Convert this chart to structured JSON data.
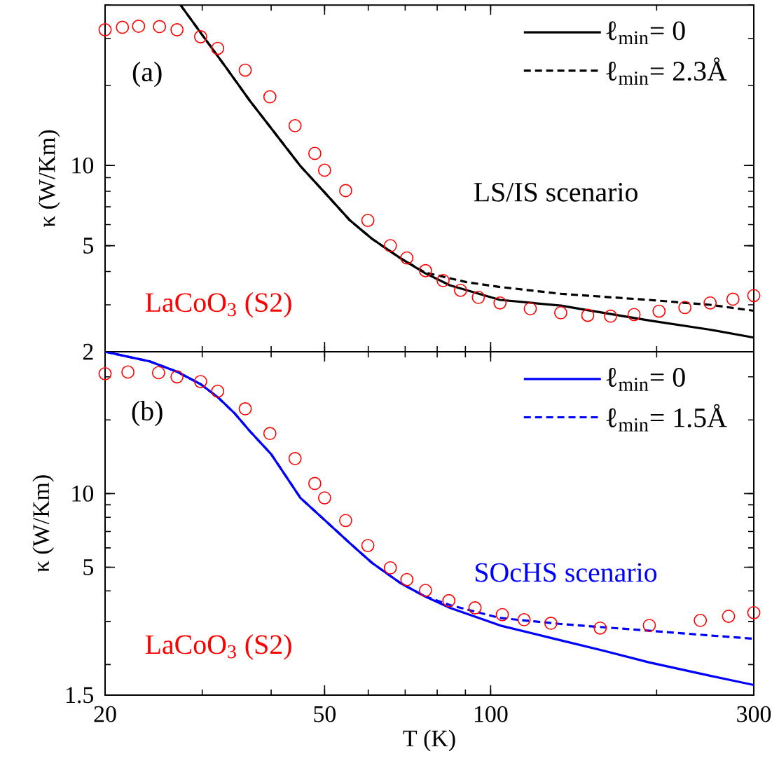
{
  "chart_data": [
    {
      "type": "line",
      "ylabel": "κ (W/Km)",
      "log": "xy",
      "xlim": [
        20,
        300
      ],
      "ylim": [
        2,
        40
      ],
      "xticks": [
        20,
        50,
        100,
        300
      ],
      "yticks": [
        2,
        5,
        10
      ],
      "tick_labels": "y",
      "legend": "top right",
      "annotations": [
        "(a)",
        "LS/IS scenario",
        "LaCoO$_{3}$ (S2)"
      ],
      "series": [
        {
          "type": "scatter",
          "color": "#ff0000",
          "marker": "circle",
          "x": [
            20,
            21.5,
            23,
            25.1,
            27,
            29.8,
            32,
            35.9,
            39.8,
            44.2,
            48,
            50,
            54.6,
            59.9,
            65.8,
            70.5,
            76.2,
            82,
            88.2,
            95,
            104,
            118,
            134,
            150,
            165,
            182,
            202,
            225,
            250,
            275,
            300
          ],
          "values": [
            32.3,
            33,
            33.3,
            33.2,
            32.3,
            30.4,
            27.5,
            22.8,
            18.1,
            14.1,
            11.1,
            9.6,
            8.05,
            6.22,
            5.0,
            4.5,
            4.03,
            3.7,
            3.4,
            3.2,
            3.05,
            2.9,
            2.8,
            2.74,
            2.72,
            2.76,
            2.84,
            2.93,
            3.05,
            3.15,
            3.25
          ]
        },
        {
          "name": "ℓ$_{min}$= 0",
          "color": "#000000",
          "line_style": "solid",
          "x": [
            27.4,
            30,
            33,
            36.6,
            40,
            45.2,
            50,
            55.6,
            61,
            68.6,
            76,
            84.4,
            104,
            134,
            160,
            194,
            250,
            300
          ],
          "values": [
            40,
            30.9,
            23.6,
            17.5,
            13.8,
            9.95,
            7.92,
            6.22,
            5.3,
            4.49,
            3.95,
            3.55,
            3.13,
            2.98,
            2.8,
            2.62,
            2.42,
            2.26
          ]
        },
        {
          "name": "ℓ$_{min}$= 2.3Å",
          "color": "#000000",
          "line_style": "dashed",
          "x": [
            27.4,
            30,
            33,
            36.6,
            40,
            45.2,
            50,
            55.6,
            61,
            68.6,
            76,
            90.4,
            104,
            134,
            198,
            250,
            300
          ],
          "values": [
            40,
            30.9,
            23.6,
            17.5,
            13.8,
            9.95,
            7.92,
            6.22,
            5.3,
            4.49,
            3.97,
            3.65,
            3.5,
            3.3,
            3.12,
            3.0,
            2.85
          ]
        }
      ]
    },
    {
      "type": "line",
      "xlabel": "T (K)",
      "ylabel": "κ (W/Km)",
      "log": "xy",
      "xlim": [
        20,
        300
      ],
      "ylim": [
        1.5,
        38
      ],
      "xticks": [
        20,
        50,
        100,
        300
      ],
      "yticks": [
        1.5,
        5,
        10
      ],
      "legend": "top right",
      "annotations": [
        "(b)",
        "SOcHS scenario",
        "LaCoO$_{3}$ (S2)"
      ],
      "series": [
        {
          "type": "scatter",
          "color": "#ff0000",
          "marker": "circle",
          "x": [
            20,
            22,
            25,
            27,
            29.8,
            32,
            35.9,
            39.8,
            44.2,
            48,
            50,
            54.6,
            59.9,
            65.8,
            70.5,
            76.2,
            84,
            93.7,
            105,
            115,
            128.6,
            158,
            194,
            240,
            270,
            300
          ],
          "values": [
            30.9,
            31.4,
            31.2,
            30,
            28.7,
            26.2,
            22.2,
            17.6,
            13.9,
            11.0,
            9.6,
            7.76,
            6.13,
            4.97,
            4.45,
            4.02,
            3.65,
            3.41,
            3.2,
            3.05,
            2.95,
            2.82,
            2.89,
            3.03,
            3.15,
            3.26
          ]
        },
        {
          "name": "ℓ$_{min}$= 0",
          "color": "#0000ff",
          "line_style": "solid",
          "x": [
            20,
            24.1,
            27,
            29.8,
            32,
            34.4,
            36.6,
            40,
            45.2,
            50,
            55.6,
            61,
            68.6,
            76,
            84.4,
            104,
            128.6,
            160,
            194,
            250,
            300
          ],
          "values": [
            38,
            34.7,
            31.5,
            28,
            24.8,
            21.2,
            18,
            14.5,
            9.6,
            7.8,
            6.26,
            5.2,
            4.31,
            3.8,
            3.41,
            2.89,
            2.57,
            2.28,
            2.04,
            1.8,
            1.65
          ]
        },
        {
          "name": "ℓ$_{min}$= 1.5Å",
          "color": "#0000ff",
          "line_style": "dashed",
          "x": [
            20,
            24.1,
            27,
            29.8,
            32,
            34.4,
            36.6,
            40,
            45.2,
            50,
            55.6,
            61,
            68.6,
            76,
            84.4,
            104,
            134,
            198,
            250,
            300
          ],
          "values": [
            38,
            34.7,
            31.5,
            28,
            24.8,
            21.2,
            18,
            14.5,
            9.6,
            7.8,
            6.26,
            5.2,
            4.31,
            3.8,
            3.5,
            3.1,
            2.93,
            2.74,
            2.63,
            2.55
          ]
        }
      ]
    }
  ]
}
